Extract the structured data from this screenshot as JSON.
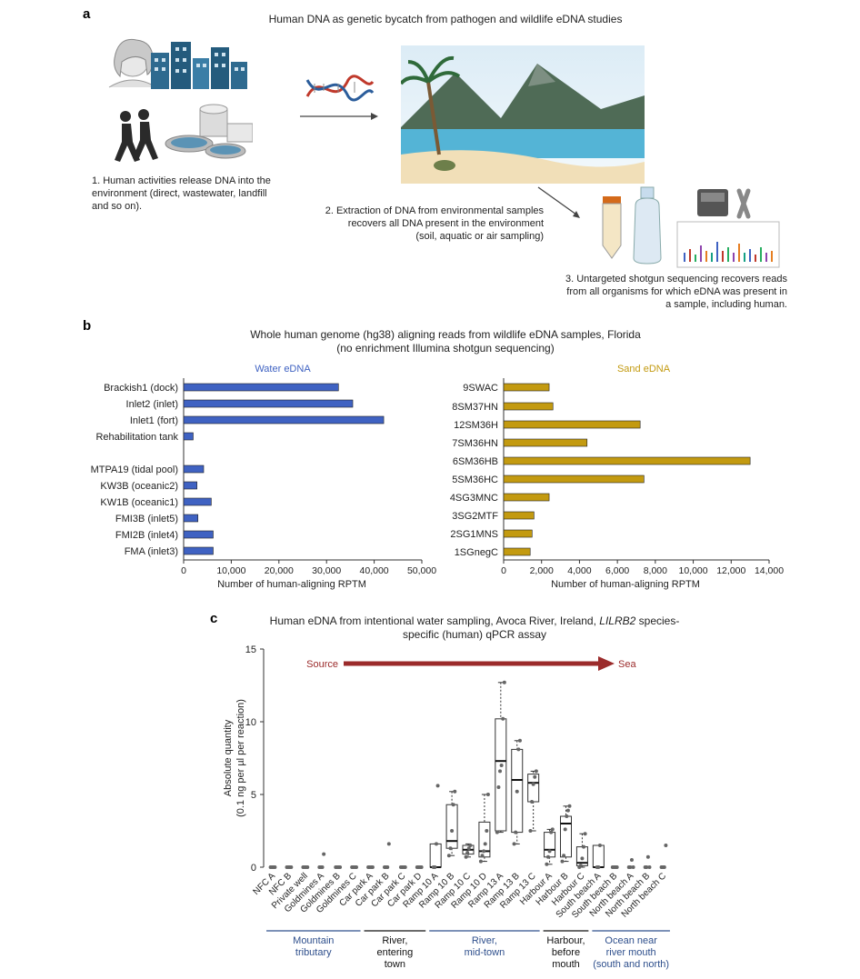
{
  "panel_a": {
    "label": "a",
    "title": "Human DNA as genetic bycatch from pathogen and wildlife eDNA studies",
    "step1": [
      "1. Human activities release DNA into the",
      "environment (direct, wastewater, landfill",
      "and so on)."
    ],
    "step2": [
      "2. Extraction of DNA from environmental samples",
      "recovers all DNA present in the environment",
      "(soil, aquatic or air sampling)"
    ],
    "step3": [
      "3. Untargeted shotgun sequencing recovers reads",
      "from all organisms for which eDNA was present in",
      "a sample, including human."
    ]
  },
  "panel_b": {
    "label": "b",
    "title_line1": "Whole human genome (hg38) aligning reads from wildlife eDNA samples, Florida",
    "title_line2": "(no enrichment Illumina shotgun sequencing)"
  },
  "panel_c": {
    "label": "c",
    "title_line1_pre": "Human eDNA from intentional water sampling, Avoca River, Ireland, ",
    "title_line1_em": "LILRB2",
    "title_line1_post": " species-",
    "title_line2": "specific (human) qPCR assay",
    "source_label": "Source",
    "sea_label": "Sea",
    "groups": [
      {
        "lines": [
          "Mountain",
          "tributary"
        ],
        "color": "#2e4f8c"
      },
      {
        "lines": [
          "River,",
          "entering",
          "town"
        ],
        "color": "#111111"
      },
      {
        "lines": [
          "River,",
          "mid-town"
        ],
        "color": "#2e4f8c"
      },
      {
        "lines": [
          "Harbour,",
          "before",
          "mouth"
        ],
        "color": "#111111"
      },
      {
        "lines": [
          "Ocean near",
          "river mouth",
          "(south and north)"
        ],
        "color": "#2e4f8c"
      }
    ]
  },
  "colors": {
    "water": "#3f62c2",
    "sand": "#c39a10",
    "arrow": "#9b2b2b",
    "group_blue": "#2e4f8c"
  },
  "chart_data": [
    {
      "type": "bar",
      "orientation": "horizontal",
      "title": "Water eDNA",
      "xlabel": "Number of human-aligning RPTM",
      "xlim": [
        0,
        50000
      ],
      "xticks": [
        "0",
        "10,000",
        "20,000",
        "30,000",
        "40,000",
        "50,000"
      ],
      "categories": [
        "Brackish1 (dock)",
        "Inlet2 (inlet)",
        "Inlet1 (fort)",
        "Rehabilitation tank",
        "MTPA19 (tidal pool)",
        "KW3B (oceanic2)",
        "KW1B (oceanic1)",
        "FMI3B (inlet5)",
        "FMI2B (inlet4)",
        "FMA (inlet3)"
      ],
      "values": [
        32500,
        35500,
        42000,
        2000,
        4200,
        2800,
        5800,
        3000,
        6200,
        6200
      ]
    },
    {
      "type": "bar",
      "orientation": "horizontal",
      "title": "Sand eDNA",
      "xlabel": "Number of human-aligning RPTM",
      "xlim": [
        0,
        14000
      ],
      "xticks": [
        "0",
        "2,000",
        "4,000",
        "6,000",
        "8,000",
        "10,000",
        "12,000",
        "14,000"
      ],
      "categories": [
        "9SWAC",
        "8SM37HN",
        "12SM36H",
        "7SM36HN",
        "6SM36HB",
        "5SM36HC",
        "4SG3MNC",
        "3SG2MTF",
        "2SG1MNS",
        "1SGnegC"
      ],
      "values": [
        2400,
        2600,
        7200,
        4400,
        13000,
        7400,
        2400,
        1600,
        1500,
        1400
      ]
    },
    {
      "type": "box",
      "title": "Human eDNA from intentional water sampling, Avoca River, Ireland, LILRB2 species-specific (human) qPCR assay",
      "ylabel": "Absolute quantity (0.1 ng per µl per reaction)",
      "ylim": [
        0,
        15
      ],
      "yticks": [
        "0",
        "5",
        "10",
        "15"
      ],
      "categories": [
        "NFC A",
        "NFC B",
        "Private well",
        "Goldmines A",
        "Goldmines B",
        "Goldmines C",
        "Car park A",
        "Car park B",
        "Car park C",
        "Car park D",
        "Ramp 10 A",
        "Ramp 10 B",
        "Ramp 10 C",
        "Ramp 10 D",
        "Ramp 13 A",
        "Ramp 13 B",
        "Ramp 13 C",
        "Harbour A",
        "Harbour B",
        "Harbour C",
        "South beach A",
        "South beach B",
        "North beach A",
        "North beach B",
        "North beach C"
      ],
      "boxes": [
        {
          "category": "Ramp 10 A",
          "q1": 0,
          "median": 0,
          "q3": 1.6,
          "whisker_low": 0,
          "whisker_high": 1.6
        },
        {
          "category": "Ramp 10 B",
          "q1": 1.3,
          "median": 1.8,
          "q3": 4.3,
          "whisker_low": 0.8,
          "whisker_high": 5.2
        },
        {
          "category": "Ramp 10 C",
          "q1": 0.9,
          "median": 1.2,
          "q3": 1.5,
          "whisker_low": 0.7,
          "whisker_high": 1.6
        },
        {
          "category": "Ramp 10 D",
          "q1": 0.7,
          "median": 1.1,
          "q3": 3.1,
          "whisker_low": 0.4,
          "whisker_high": 5.0
        },
        {
          "category": "Ramp 13 A",
          "q1": 2.5,
          "median": 7.3,
          "q3": 10.2,
          "whisker_low": 2.4,
          "whisker_high": 12.7
        },
        {
          "category": "Ramp 13 B",
          "q1": 2.4,
          "median": 6.0,
          "q3": 8.1,
          "whisker_low": 1.6,
          "whisker_high": 8.7
        },
        {
          "category": "Ramp 13 C",
          "q1": 4.5,
          "median": 5.8,
          "q3": 6.4,
          "whisker_low": 2.5,
          "whisker_high": 6.6
        },
        {
          "category": "Harbour A",
          "q1": 0.7,
          "median": 1.2,
          "q3": 2.4,
          "whisker_low": 0.2,
          "whisker_high": 2.6
        },
        {
          "category": "Harbour B",
          "q1": 0.7,
          "median": 3.0,
          "q3": 3.5,
          "whisker_low": 0.4,
          "whisker_high": 4.2
        },
        {
          "category": "Harbour C",
          "q1": 0.1,
          "median": 0.3,
          "q3": 1.4,
          "whisker_low": 0,
          "whisker_high": 2.3
        },
        {
          "category": "South beach A",
          "q1": 0,
          "median": 0,
          "q3": 1.5,
          "whisker_low": 0,
          "whisker_high": 1.5
        }
      ],
      "points": [
        {
          "category": "NFC A",
          "values": [
            0,
            0,
            0,
            0
          ]
        },
        {
          "category": "NFC B",
          "values": [
            0,
            0,
            0,
            0
          ]
        },
        {
          "category": "Private well",
          "values": [
            0,
            0,
            0,
            0
          ]
        },
        {
          "category": "Goldmines A",
          "values": [
            0,
            0,
            0,
            0.9
          ]
        },
        {
          "category": "Goldmines B",
          "values": [
            0,
            0,
            0,
            0
          ]
        },
        {
          "category": "Goldmines C",
          "values": [
            0,
            0,
            0,
            0
          ]
        },
        {
          "category": "Car park A",
          "values": [
            0,
            0,
            0,
            0
          ]
        },
        {
          "category": "Car park B",
          "values": [
            0,
            0,
            0,
            1.6
          ]
        },
        {
          "category": "Car park C",
          "values": [
            0,
            0,
            0,
            0
          ]
        },
        {
          "category": "Car park D",
          "values": [
            0,
            0,
            0,
            0
          ]
        },
        {
          "category": "Ramp 10 A",
          "values": [
            0,
            0,
            1.6,
            5.6
          ]
        },
        {
          "category": "Ramp 10 B",
          "values": [
            0.8,
            1.3,
            2.5,
            4.3,
            5.2
          ]
        },
        {
          "category": "Ramp 10 C",
          "values": [
            0.7,
            1.0,
            1.3,
            1.5
          ]
        },
        {
          "category": "Ramp 10 D",
          "values": [
            0.4,
            0.8,
            1.1,
            1.6,
            2.5,
            5.0
          ]
        },
        {
          "category": "Ramp 13 A",
          "values": [
            2.4,
            5.5,
            6.6,
            7.0,
            10.2,
            12.7
          ]
        },
        {
          "category": "Ramp 13 B",
          "values": [
            1.6,
            2.4,
            5.2,
            8.1,
            8.7
          ]
        },
        {
          "category": "Ramp 13 C",
          "values": [
            2.5,
            4.5,
            5.7,
            6.2,
            6.6
          ]
        },
        {
          "category": "Harbour A",
          "values": [
            0.2,
            0.7,
            1.1,
            2.4,
            2.6
          ]
        },
        {
          "category": "Harbour B",
          "values": [
            0.4,
            0.8,
            2.6,
            3.5,
            3.9,
            4.2
          ]
        },
        {
          "category": "Harbour C",
          "values": [
            0,
            0.1,
            0.6,
            1.4,
            2.3
          ]
        },
        {
          "category": "South beach A",
          "values": [
            0,
            0,
            1.5
          ]
        },
        {
          "category": "South beach B",
          "values": [
            0,
            0,
            0,
            0
          ]
        },
        {
          "category": "North beach A",
          "values": [
            0,
            0,
            0.5,
            0
          ]
        },
        {
          "category": "North beach B",
          "values": [
            0,
            0,
            0.7,
            0
          ]
        },
        {
          "category": "North beach C",
          "values": [
            0,
            0,
            0,
            1.5
          ]
        }
      ]
    }
  ]
}
